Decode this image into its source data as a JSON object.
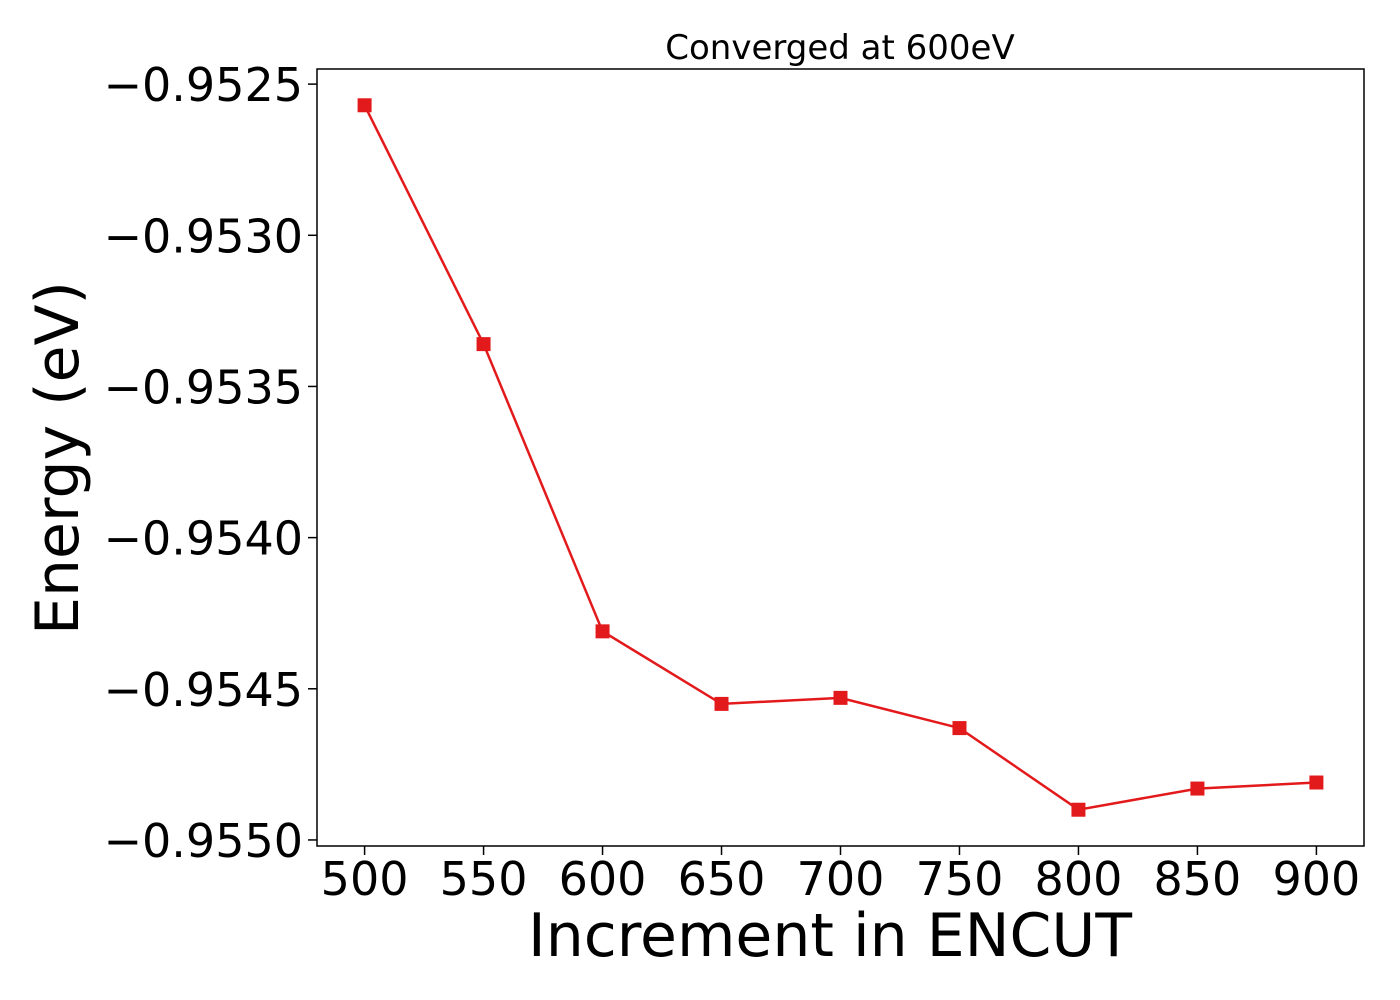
{
  "chart_data": {
    "type": "line",
    "title": "Converged at 600eV",
    "xlabel": "Increment in ENCUT",
    "ylabel": "Energy (eV)",
    "x": [
      500,
      550,
      600,
      650,
      700,
      750,
      800,
      850,
      900
    ],
    "series": [
      {
        "values": [
          -0.95257,
          -0.95336,
          -0.95431,
          -0.95455,
          -0.95453,
          -0.95463,
          -0.9549,
          -0.95483,
          -0.95481
        ],
        "color": "#e31a1c",
        "marker": "square"
      }
    ],
    "xlim": [
      480,
      920
    ],
    "ylim": [
      -0.95502,
      -0.95245
    ],
    "xticks": [
      500,
      550,
      600,
      650,
      700,
      750,
      800,
      850,
      900
    ],
    "yticks": [
      -0.9525,
      -0.953,
      -0.9535,
      -0.954,
      -0.9545,
      -0.955
    ],
    "ytick_labels": [
      "−0.9525",
      "−0.9530",
      "−0.9535",
      "−0.9540",
      "−0.9545",
      "−0.9550"
    ],
    "grid": false,
    "legend": "none"
  }
}
